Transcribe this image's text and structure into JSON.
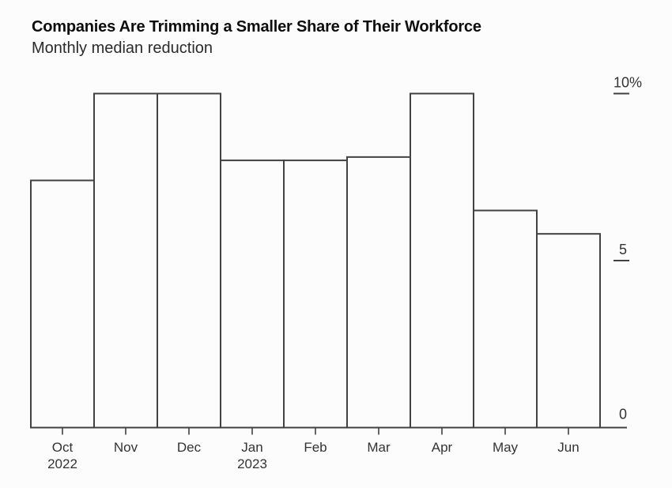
{
  "chart_data": {
    "type": "bar",
    "title": "Companies Are Trimming a Smaller Share of Their Workforce",
    "subtitle": "Monthly median reduction",
    "categories": [
      "Oct",
      "Nov",
      "Dec",
      "Jan",
      "Feb",
      "Mar",
      "Apr",
      "May",
      "Jun"
    ],
    "values": [
      7.4,
      10,
      10,
      8,
      8,
      8.1,
      10,
      6.5,
      5.8
    ],
    "year_labels": [
      {
        "index": 0,
        "label": "2022"
      },
      {
        "index": 3,
        "label": "2023"
      }
    ],
    "y_ticks": [
      {
        "value": 10,
        "label": "10%",
        "tick": true
      },
      {
        "value": 5,
        "label": "5",
        "tick": true
      },
      {
        "value": 0,
        "label": "0",
        "tick": false
      }
    ],
    "xlabel": "",
    "ylabel": "",
    "ylim": [
      0,
      10
    ],
    "grid": false,
    "legend": false,
    "axis_side": "right",
    "bar_fill": "#fcfcfc",
    "bar_stroke": "#424242",
    "axis_color": "#424242",
    "text_color": "#333333",
    "title_color": "#0d0d0d",
    "subtitle_color": "#2b2b2b",
    "background_color": "#fcfcfc"
  }
}
